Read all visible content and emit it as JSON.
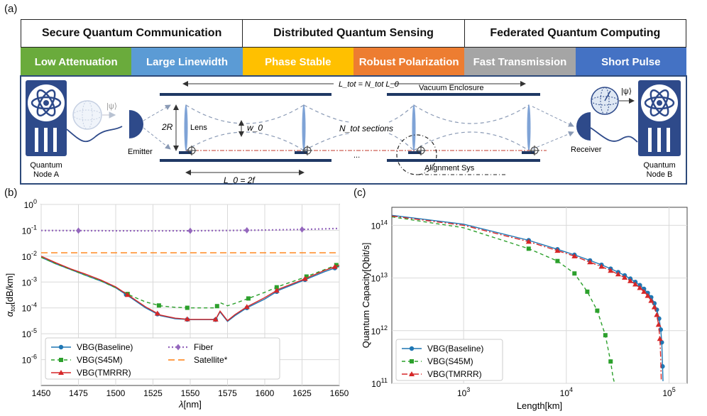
{
  "panel_labels": {
    "a": "(a)",
    "b": "(b)",
    "c": "(c)"
  },
  "applications": [
    "Secure Quantum Communication",
    "Distributed Quantum Sensing",
    "Federated Quantum Computing"
  ],
  "requirements": [
    {
      "label": "Low Attenuation",
      "color": "#6aab3c"
    },
    {
      "label": "Large Linewidth",
      "color": "#5b9bd5"
    },
    {
      "label": "Phase Stable",
      "color": "#ffc000"
    },
    {
      "label": "Robust Polarization",
      "color": "#ed7d31"
    },
    {
      "label": "Fast Transmission",
      "color": "#a5a5a5"
    },
    {
      "label": "Short Pulse",
      "color": "#4472c4"
    }
  ],
  "diagram": {
    "node_a": [
      "Quantum",
      "Node A"
    ],
    "node_b": [
      "Quantum",
      "Node B"
    ],
    "emitter": "Emitter",
    "receiver": "Receiver",
    "ltot_formula": "L_tot = N_tot L_0",
    "vacuum": "Vacuum Enclosure",
    "two_r": "2R",
    "lens": "Lens",
    "w0": "w_0",
    "sections": "N_tot sections",
    "ellipsis": "...",
    "alignment": "Alignment Sys",
    "l0_formula": "L_0 = 2f",
    "psi": "|ψ⟩"
  },
  "chart_data": [
    {
      "type": "line",
      "id": "b",
      "xlabel": "λ[nm]",
      "ylabel": "α_tot[dB/km]",
      "xlim": [
        1450,
        1650
      ],
      "ylim": [
        1e-07,
        1
      ],
      "yscale": "log",
      "xticks": [
        1450,
        1475,
        1500,
        1525,
        1550,
        1575,
        1600,
        1625,
        1650
      ],
      "yticks": [
        "10^0",
        "10^-1",
        "10^-2",
        "10^-3",
        "10^-4",
        "10^-5",
        "10^-6"
      ],
      "grid": true,
      "legend_position": "bottom-left",
      "series": [
        {
          "name": "VBG(Baseline)",
          "color": "#1f77b4",
          "dash": "",
          "marker": "circle",
          "x": [
            1450,
            1460,
            1470,
            1480,
            1490,
            1500,
            1510,
            1520,
            1530,
            1540,
            1550,
            1560,
            1567,
            1570,
            1575,
            1580,
            1588,
            1600,
            1610,
            1625,
            1640,
            1650
          ],
          "y": [
            0.009,
            0.005,
            0.003,
            0.0018,
            0.0011,
            0.0006,
            0.00025,
            0.0001,
            5e-05,
            3.8e-05,
            3.5e-05,
            3.5e-05,
            3.5e-05,
            7e-05,
            3e-05,
            5e-05,
            0.0001,
            0.00022,
            0.0005,
            0.0011,
            0.0025,
            0.004
          ],
          "markers_x": [
            1507,
            1528,
            1548,
            1567,
            1588,
            1608,
            1627,
            1647
          ]
        },
        {
          "name": "VBG(S45M)",
          "color": "#2ca02c",
          "dash": "5,4",
          "marker": "square",
          "x": [
            1450,
            1460,
            1470,
            1480,
            1490,
            1500,
            1510,
            1520,
            1530,
            1540,
            1550,
            1560,
            1567,
            1570,
            1575,
            1580,
            1588,
            1600,
            1610,
            1625,
            1640,
            1650
          ],
          "y": [
            0.009,
            0.005,
            0.003,
            0.0018,
            0.0011,
            0.0006,
            0.0003,
            0.00017,
            0.00012,
            0.000105,
            0.0001,
            0.0001,
            0.0001,
            0.00016,
            0.00012,
            0.00015,
            0.00022,
            0.0004,
            0.0007,
            0.0014,
            0.003,
            0.005
          ],
          "markers_x": [
            1508,
            1529,
            1548,
            1568,
            1589,
            1608,
            1628,
            1648
          ]
        },
        {
          "name": "VBG(TMRRR)",
          "color": "#d62728",
          "dash": "",
          "marker": "triangle",
          "x": [
            1450,
            1460,
            1470,
            1480,
            1490,
            1500,
            1510,
            1520,
            1530,
            1540,
            1550,
            1560,
            1567,
            1570,
            1575,
            1580,
            1588,
            1600,
            1610,
            1625,
            1640,
            1650
          ],
          "y": [
            0.01,
            0.0055,
            0.0032,
            0.002,
            0.0012,
            0.00065,
            0.00027,
            0.00011,
            5.3e-05,
            4e-05,
            3.6e-05,
            3.6e-05,
            3.6e-05,
            7.5e-05,
            3.2e-05,
            5.5e-05,
            0.00011,
            0.00025,
            0.00055,
            0.0012,
            0.0028,
            0.0045
          ],
          "markers_x": [
            1508,
            1528,
            1548,
            1567,
            1588,
            1608,
            1627,
            1647
          ]
        },
        {
          "name": "Fiber",
          "color": "#9467bd",
          "dash": "2,3",
          "marker": "diamond",
          "x": [
            1450,
            1475,
            1500,
            1525,
            1550,
            1575,
            1600,
            1625,
            1650
          ],
          "y": [
            0.098,
            0.097,
            0.096,
            0.095,
            0.096,
            0.098,
            0.102,
            0.108,
            0.118
          ],
          "markers_x": [
            1475,
            1550,
            1588,
            1625
          ]
        },
        {
          "name": "Satellite*",
          "color": "#ff7f0e",
          "dash": "9,5",
          "marker": "none",
          "x": [
            1450,
            1650
          ],
          "y": [
            0.0135,
            0.0135
          ]
        }
      ]
    },
    {
      "type": "line",
      "id": "c",
      "xlabel": "Length[km]",
      "ylabel": "Quantum Capacity[Qbit/s]",
      "xscale": "log",
      "yscale": "log",
      "xlim": [
        200,
        150000
      ],
      "ylim": [
        100000000000.0,
        220000000000000.0
      ],
      "xticks": [
        "10^3",
        "10^4",
        "10^5"
      ],
      "yticks": [
        "10^11",
        "10^12",
        "10^13",
        "10^14"
      ],
      "grid": true,
      "legend_position": "bottom-left",
      "series": [
        {
          "name": "VBG(Baseline)",
          "color": "#1f77b4",
          "dash": "",
          "marker": "circle",
          "x": [
            200,
            1000,
            4300,
            8200,
            12000,
            17000,
            22000,
            27000,
            32000,
            37000,
            42000,
            47000,
            52000,
            57000,
            62000,
            67000,
            72000,
            76000,
            80000,
            83000,
            85000,
            86500,
            87300
          ],
          "y": [
            155000000000000.0,
            105000000000000.0,
            52000000000000.0,
            35000000000000.0,
            27500000000000.0,
            21500000000000.0,
            17800000000000.0,
            15000000000000.0,
            12900000000000.0,
            11200000000000.0,
            9700000000000.0,
            8400000000000.0,
            7300000000000.0,
            6200000000000.0,
            5200000000000.0,
            4300000000000.0,
            3300000000000.0,
            2500000000000.0,
            1700000000000.0,
            1050000000000.0,
            600000000000.0,
            210000000000.0,
            110000000000.0
          ],
          "markers_x": [
            4300,
            8200,
            12000,
            17000,
            22000,
            27000,
            32000,
            37000,
            42000,
            47000,
            52000,
            57000,
            62000,
            67000,
            72000,
            76000,
            80000,
            83000,
            85000,
            86500
          ]
        },
        {
          "name": "VBG(S45M)",
          "color": "#2ca02c",
          "dash": "5,4",
          "marker": "square",
          "x": [
            200,
            1000,
            4300,
            8200,
            12000,
            16000,
            20000,
            24000,
            27000,
            28500,
            29300
          ],
          "y": [
            145000000000000.0,
            90000000000000.0,
            36000000000000.0,
            21000000000000.0,
            12200000000000.0,
            5500000000000.0,
            2400000000000.0,
            820000000000.0,
            260000000000.0,
            130000000000.0,
            105000000000.0
          ],
          "markers_x": [
            4300,
            8200,
            12000,
            16000,
            20000,
            24000,
            27000
          ]
        },
        {
          "name": "VBG(TMRRR)",
          "color": "#d62728",
          "dash": "8,3,2,3",
          "marker": "triangle",
          "x": [
            200,
            1000,
            4300,
            8200,
            12000,
            17000,
            22000,
            27000,
            32000,
            37000,
            42000,
            47000,
            52000,
            57000,
            62000,
            67000,
            72000,
            76000,
            79000,
            81500,
            83000,
            84000
          ],
          "y": [
            150000000000000.0,
            100000000000000.0,
            49000000000000.0,
            33000000000000.0,
            26000000000000.0,
            20000000000000.0,
            16500000000000.0,
            13800000000000.0,
            11800000000000.0,
            10200000000000.0,
            8800000000000.0,
            7600000000000.0,
            6500000000000.0,
            5500000000000.0,
            4600000000000.0,
            3700000000000.0,
            2800000000000.0,
            2000000000000.0,
            1300000000000.0,
            700000000000.0,
            300000000000.0,
            110000000000.0
          ],
          "markers_x": [
            4300,
            8200,
            12000,
            17000,
            22000,
            27000,
            32000,
            37000,
            42000,
            47000,
            52000,
            57000,
            62000,
            67000,
            72000,
            76000,
            79000,
            81500
          ]
        }
      ]
    }
  ]
}
